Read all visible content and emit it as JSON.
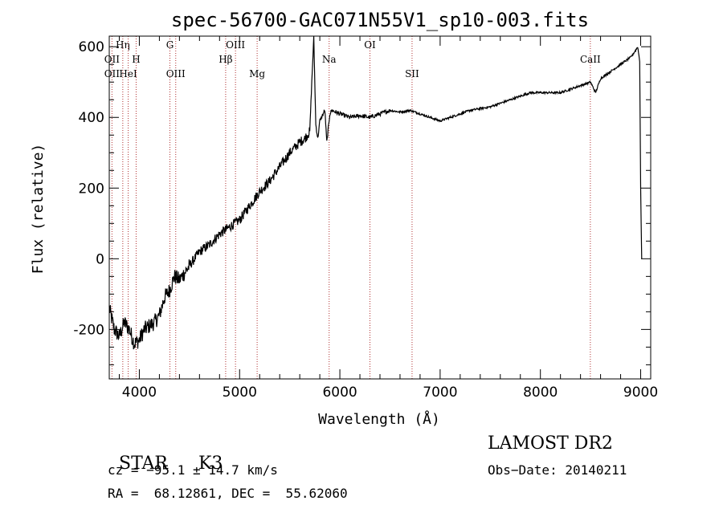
{
  "chart_data": {
    "type": "line",
    "title": "spec-56700-GAC071N55V1_sp10-003.fits",
    "xlabel": "Wavelength (Å)",
    "ylabel": "Flux (relative)",
    "xlim": [
      3700,
      9100
    ],
    "ylim": [
      -340,
      630
    ],
    "xticks": [
      4000,
      5000,
      6000,
      7000,
      8000,
      9000
    ],
    "yticks": [
      -200,
      0,
      200,
      400,
      600
    ],
    "grid": false,
    "series": [
      {
        "x": [
          3700,
          3750,
          3800,
          3850,
          3900,
          3950,
          4000,
          4050,
          4100,
          4150,
          4200,
          4250,
          4300,
          4350,
          4400,
          4500,
          4600,
          4700,
          4800,
          4900,
          5000,
          5100,
          5200,
          5300,
          5400,
          5500,
          5600,
          5650,
          5700,
          5720,
          5740,
          5760,
          5780,
          5800,
          5850,
          5870,
          5900,
          5920,
          6000,
          6100,
          6200,
          6300,
          6400,
          6500,
          6600,
          6700,
          6800,
          6900,
          7000,
          7100,
          7200,
          7300,
          7400,
          7500,
          7600,
          7700,
          7800,
          7900,
          8000,
          8100,
          8200,
          8300,
          8400,
          8500,
          8550,
          8600,
          8700,
          8800,
          8900,
          8950,
          8970,
          8990,
          9000,
          9005,
          9010
        ],
        "y": [
          -140,
          -200,
          -220,
          -180,
          -200,
          -240,
          -230,
          -200,
          -190,
          -180,
          -160,
          -110,
          -90,
          -50,
          -60,
          -20,
          20,
          40,
          70,
          90,
          110,
          150,
          190,
          220,
          260,
          300,
          330,
          340,
          360,
          500,
          625,
          380,
          340,
          390,
          420,
          330,
          410,
          420,
          410,
          400,
          405,
          400,
          410,
          420,
          415,
          420,
          410,
          400,
          390,
          400,
          410,
          420,
          425,
          430,
          440,
          450,
          460,
          470,
          470,
          470,
          470,
          480,
          490,
          500,
          470,
          510,
          530,
          550,
          570,
          590,
          600,
          560,
          200,
          100,
          0
        ]
      }
    ],
    "lines": [
      {
        "label": "OII",
        "x": 3727,
        "row": "low"
      },
      {
        "label": "Hη",
        "x": 3835,
        "row": "top"
      },
      {
        "label": "OII",
        "x": 3727,
        "row": "mid"
      },
      {
        "label": "HeI",
        "x": 3889,
        "row": "low"
      },
      {
        "label": "H",
        "x": 3968,
        "row": "mid"
      },
      {
        "label": "G",
        "x": 4305,
        "row": "top"
      },
      {
        "label": "OIII",
        "x": 4363,
        "row": "low"
      },
      {
        "label": "OIII",
        "x": 4959,
        "row": "top"
      },
      {
        "label": "Hβ",
        "x": 4861,
        "row": "mid"
      },
      {
        "label": "Mg",
        "x": 5175,
        "row": "low"
      },
      {
        "label": "Na",
        "x": 5893,
        "row": "mid"
      },
      {
        "label": "OI",
        "x": 6300,
        "row": "top"
      },
      {
        "label": "SII",
        "x": 6720,
        "row": "low"
      },
      {
        "label": "CaII",
        "x": 8498,
        "row": "mid"
      }
    ]
  },
  "info": {
    "class_label": "STAR",
    "subclass": "K3",
    "survey": "LAMOST DR2",
    "cz": "cz = −95.1 ± 14.7 km/s",
    "obs_date": "Obs−Date: 20140211",
    "coords": "RA =  68.12861, DEC =  55.62060"
  },
  "colors": {
    "line_marker": "#b03030",
    "spectrum": "#000000"
  }
}
